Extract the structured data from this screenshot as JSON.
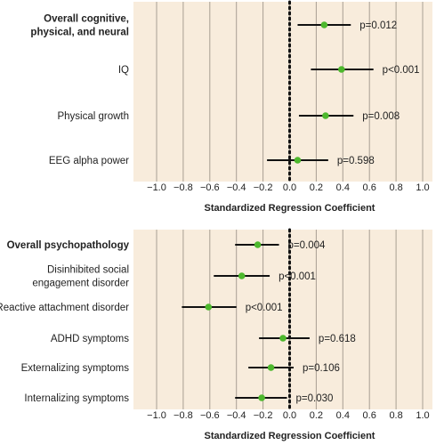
{
  "colors": {
    "panel_bg": "#f8ecdc",
    "grid": "#a89f93",
    "zero_line": "#111111",
    "ci_line": "#111111",
    "point": "#4db82d"
  },
  "chart_data": [
    {
      "type": "forest",
      "xlabel": "Standardized Regression Coefficient",
      "xlim": [
        -1.0,
        1.0
      ],
      "xticks": [
        "−1.0",
        "−0.8",
        "−0.6",
        "−0.4",
        "−0.2",
        "0.0",
        "0.2",
        "0.4",
        "0.6",
        "0.8",
        "1.0"
      ],
      "grid": true,
      "reference_line": 0,
      "rows": [
        {
          "label": [
            "Overall cognitive,",
            "physical, and neural"
          ],
          "bold": true,
          "estimate": 0.26,
          "ci": [
            0.06,
            0.46
          ],
          "p": "p=0.012"
        },
        {
          "label": [
            "IQ"
          ],
          "bold": false,
          "estimate": 0.39,
          "ci": [
            0.16,
            0.63
          ],
          "p": "p<0.001"
        },
        {
          "label": [
            "Physical growth"
          ],
          "bold": false,
          "estimate": 0.27,
          "ci": [
            0.07,
            0.48
          ],
          "p": "p=0.008"
        },
        {
          "label": [
            "EEG alpha power"
          ],
          "bold": false,
          "estimate": 0.06,
          "ci": [
            -0.17,
            0.29
          ],
          "p": "p=0.598"
        }
      ]
    },
    {
      "type": "forest",
      "xlabel": "Standardized Regression Coefficient",
      "xlim": [
        -1.0,
        1.0
      ],
      "xticks": [
        "−1.0",
        "−0.8",
        "−0.6",
        "−0.4",
        "−0.2",
        "0.0",
        "0.2",
        "0.4",
        "0.6",
        "0.8",
        "1.0"
      ],
      "grid": true,
      "reference_line": 0,
      "rows": [
        {
          "label": [
            "Overall psychopathology"
          ],
          "bold": true,
          "estimate": -0.24,
          "ci": [
            -0.41,
            -0.08
          ],
          "p": "p=0.004"
        },
        {
          "label": [
            "Disinhibited social",
            "engagement disorder"
          ],
          "bold": false,
          "estimate": -0.36,
          "ci": [
            -0.57,
            -0.15
          ],
          "p": "p<0.001"
        },
        {
          "label": [
            "Reactive attachment disorder"
          ],
          "bold": false,
          "estimate": -0.61,
          "ci": [
            -0.81,
            -0.4
          ],
          "p": "p<0.001"
        },
        {
          "label": [
            "ADHD symptoms"
          ],
          "bold": false,
          "estimate": -0.05,
          "ci": [
            -0.23,
            0.15
          ],
          "p": "p=0.618"
        },
        {
          "label": [
            "Externalizing symptoms"
          ],
          "bold": false,
          "estimate": -0.14,
          "ci": [
            -0.31,
            0.03
          ],
          "p": "p=0.106"
        },
        {
          "label": [
            "Internalizing symptoms"
          ],
          "bold": false,
          "estimate": -0.21,
          "ci": [
            -0.41,
            -0.02
          ],
          "p": "p=0.030"
        }
      ]
    }
  ]
}
